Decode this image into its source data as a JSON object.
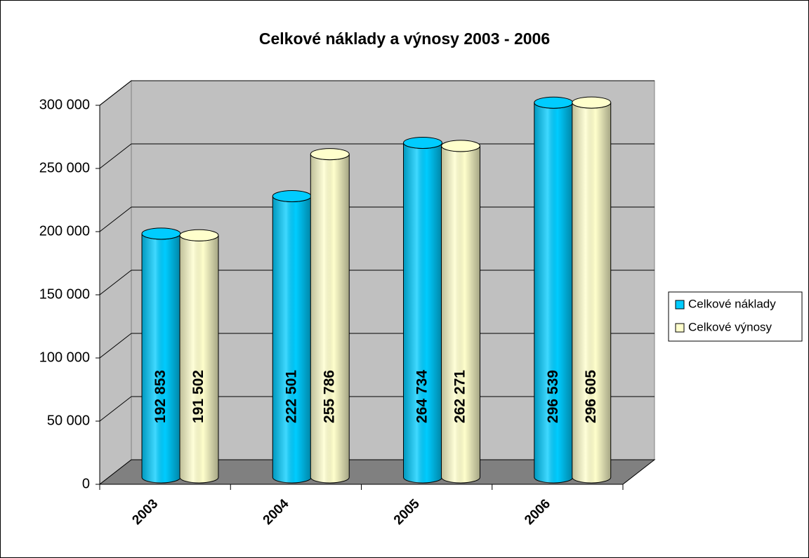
{
  "chart_data": {
    "type": "bar3d",
    "title": "Celkové náklady a výnosy 2003 - 2006",
    "categories": [
      "2003",
      "2004",
      "2005",
      "2006"
    ],
    "series": [
      {
        "name": "Celkové náklady",
        "color": "#00ccff",
        "values": [
          192853,
          222501,
          264734,
          296539
        ],
        "value_labels": [
          "192 853",
          "222 501",
          "264 734",
          "296 539"
        ]
      },
      {
        "name": "Celkové výnosy",
        "color": "#ffffcc",
        "values": [
          191502,
          255786,
          262271,
          296605
        ],
        "value_labels": [
          "191 502",
          "255 786",
          "262 271",
          "296 605"
        ]
      }
    ],
    "ylim": [
      0,
      300000
    ],
    "yticks": [
      {
        "value": 0,
        "label": "0"
      },
      {
        "value": 50000,
        "label": "50 000"
      },
      {
        "value": 100000,
        "label": "100 000"
      },
      {
        "value": 150000,
        "label": "150 000"
      },
      {
        "value": 200000,
        "label": "200 000"
      },
      {
        "value": 250000,
        "label": "250 000"
      },
      {
        "value": 300000,
        "label": "300 000"
      }
    ],
    "grid": true,
    "legend": "right"
  }
}
